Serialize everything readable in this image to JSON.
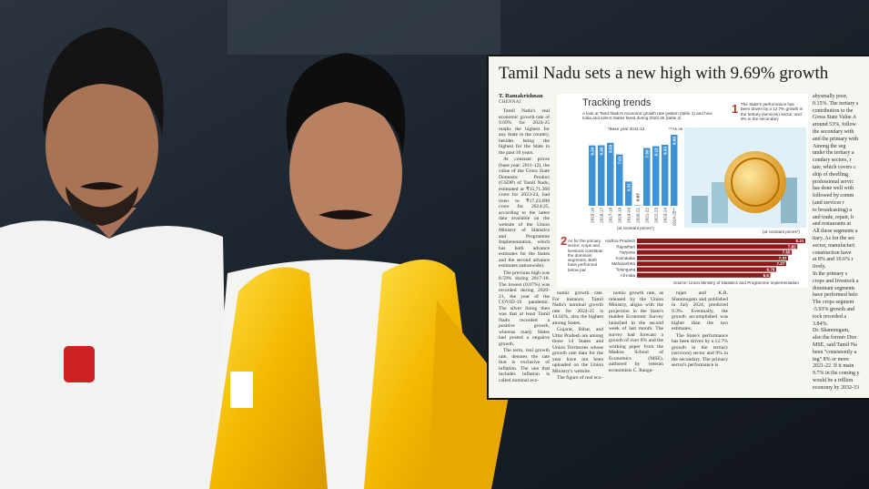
{
  "article": {
    "headline": "Tamil Nadu sets a new high with 9.69% growth",
    "byline": "T. Ramakrishnan",
    "dateline": "CHENNAI",
    "columns": [
      [
        "Tamil Nadu's real economic growth rate of 9.69% for 2024-25 marks the highest for any State in the country, besides being the highest for the State in the past 10 years.",
        "At constant prices (base year: 2011-12), the value of the Gross State Domestic Product (GSDP) of Tamil Nadu, estimated at ₹15,71,368 crore for 2023-24, had risen to ₹17,23,698 crore for 2024-25, according to the latest data available on the website of the Union Ministry of Statistics and Programme Implementation, which has both advance estimates for the States and the second advance estimates nationwide).",
        "The previous high was 8.59% during 2017-18. The lowest (0.07%) was recorded during 2020-21, the year of the COVID-19 pandemic. The silver lining then was that at least Tamil Nadu recorded a positive growth, whereas many States had posted a negative growth.",
        "The term, real growth rate, denotes the rate that is exclusive of inflation. The one that includes inflation is called nominal eco-"
      ],
      [
        "nomic growth rate. For instance, Tamil Nadu's nominal growth rate for 2024-25 is 14.02%, also the highest among States.",
        "Gujarat, Bihar, and Uttar Pradesh are among those 14 States and Union Territories whose growth rate data for the year have not been uploaded on the Union Ministry's website.",
        "The figure of real eco-"
      ],
      [
        "nomic growth rate, as released by the Union Ministry, aligns with the projection in the State's maiden Economic Survey launched in the second week of last month. The survey had forecast a growth of over 8% and the working paper from the Madras School of Economics (MSE), authored by veteran economists C. Ranga-"
      ],
      [
        "rajan and K.R. Shanmugam and published in July 2024, predicted 9.3%. Eventually, the growth accomplished was higher than the two estimates.",
        "The State's performance has been driven by a 12.7% growth in the tertiary (services) sector and 9% in the secondary. The primary sector's performance is"
      ]
    ],
    "right_column_lines": [
      "abysmally poor,",
      "0.15%. The tertiary s",
      "contribution to the",
      "Gross State Value A",
      "around 53%, follow",
      "the secondary with",
      "and the primary with",
      "Among the seg",
      "under the tertiary a",
      "condary sectors, r",
      "tate, which covers c",
      "ship of dwelling",
      "professional servic",
      "has done well with",
      "followed by comm",
      "(and services r",
      "to broadcasting) a",
      "and trade, repair, h",
      "and restaurants at",
      "All these segments a",
      "tiary. As for the sec",
      "sector, manufacturi",
      "construction have",
      "at 8% and 10.6% r",
      "tively.",
      "In the primary s",
      "crops and livestock a",
      "dominant segments",
      "have performed belo",
      "The crops segment",
      "-5.93% growth and",
      "tock recorded a",
      "3.84%.",
      "Dr. Shanmugam,",
      "also the former Dire",
      "MSE, said Tamil Na",
      "been \"consistently a",
      "ing\" 8% or more",
      "2021-22. If it main",
      "9.7% in the coming y",
      "would be a trillion",
      "economy by 2032-33"
    ]
  },
  "graphic": {
    "title": "Tracking trends",
    "subtitle": "A look at Tamil Nadu's economic growth rate pattern (table 1) and how India and select States fared during 2024-25 (table 2)",
    "note_base": "*Base year 2011-12",
    "note_date": "**As on March 17, 2025",
    "callouts": [
      {
        "number": "1",
        "text": "The State's performance has been driven by a 12.7% growth in the tertiary (services) sector, and 9% in the secondary"
      },
      {
        "number": "2",
        "text": "As for the primary sector, crops and livestock constitute the dominant segments. Both have performed below par"
      }
    ],
    "charts": [
      {
        "type": "bar",
        "color": "#3d93d6",
        "categories": [
          "2015-16",
          "2016-17",
          "2017-18",
          "2018-19",
          "2019-20",
          "2020-21",
          "2021-22",
          "2022-23",
          "2023-24",
          "2024-25**"
        ],
        "values": [
          8.24,
          8.26,
          8.59,
          7.01,
          3.31,
          0.07,
          7.89,
          8.13,
          8.33,
          9.69
        ],
        "note": "(at constant prices*)"
      },
      {
        "type": "barh",
        "color": "#8c1c1c",
        "categories": [
          "Andhra Pradesh",
          "Rajasthan",
          "Haryana",
          "Karnataka",
          "Maharashtra",
          "Telangana",
          "All India"
        ],
        "values": [
          8.21,
          7.82,
          7.55,
          7.37,
          7.27,
          6.79,
          6.5
        ],
        "note": "(at constant prices*)"
      }
    ],
    "source": "Source: Union Ministry of Statistics and Programme Implementation"
  }
}
